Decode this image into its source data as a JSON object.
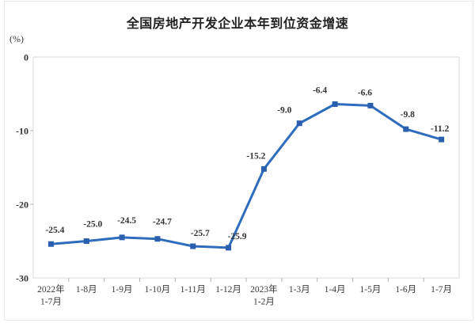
{
  "page": {
    "background_color": "#ffffff",
    "frame_border_color": "#eaeaea"
  },
  "chart_data": {
    "type": "line",
    "title": "全国房地产开发企业本年到位资金增速",
    "unit_label": "(%)",
    "categories": [
      [
        "2022年",
        "1-7月"
      ],
      [
        "1-8月"
      ],
      [
        "1-9月"
      ],
      [
        "1-10月"
      ],
      [
        "1-11月"
      ],
      [
        "1-12月"
      ],
      [
        "2023年",
        "1-2月"
      ],
      [
        "1-3月"
      ],
      [
        "1-4月"
      ],
      [
        "1-5月"
      ],
      [
        "1-6月"
      ],
      [
        "1-7月"
      ]
    ],
    "values": [
      -25.4,
      -25.0,
      -24.5,
      -24.7,
      -25.7,
      -25.9,
      -15.2,
      -9.0,
      -6.4,
      -6.6,
      -9.8,
      -11.2
    ],
    "ylim": [
      -30,
      0
    ],
    "yticks": [
      0,
      -10,
      -20,
      -30
    ],
    "grid": false,
    "legend": false,
    "line_color": "#2e6cbd",
    "marker_color": "#2a5fae",
    "axis_border_color": "#d9d9d9",
    "tick_color": "#b3b3b3",
    "text_color": "#333333",
    "title_color": "#222222"
  }
}
